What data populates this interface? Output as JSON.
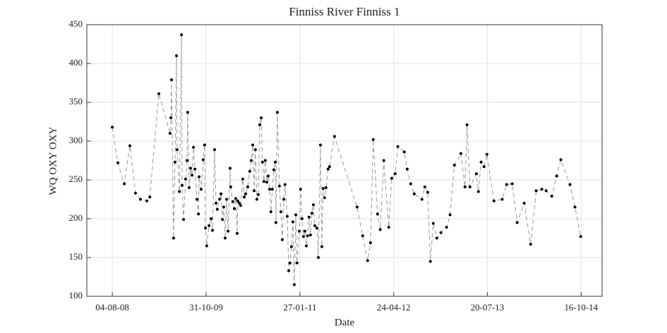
{
  "chart_data": {
    "type": "line",
    "title": "Finniss River Finniss 1",
    "x_label": "Date",
    "y_label": "WQ OXY OXY",
    "x": [
      "2008-08-04",
      "2008-08-31",
      "2008-10-01",
      "2008-10-28",
      "2008-11-24",
      "2008-12-18",
      "2009-01-18",
      "2009-02-01",
      "2009-03-17",
      "2009-05-10",
      "2009-05-14",
      "2009-05-17",
      "2009-05-27",
      "2009-06-03",
      "2009-06-10",
      "2009-06-13",
      "2009-06-24",
      "2009-07-04",
      "2009-07-07",
      "2009-07-14",
      "2009-07-24",
      "2009-07-31",
      "2009-08-03",
      "2009-08-10",
      "2009-08-17",
      "2009-08-24",
      "2009-08-31",
      "2009-09-07",
      "2009-09-17",
      "2009-09-24",
      "2009-09-27",
      "2009-10-07",
      "2009-10-17",
      "2009-10-24",
      "2009-10-28",
      "2009-11-03",
      "2009-11-14",
      "2009-11-24",
      "2009-12-01",
      "2009-12-11",
      "2009-12-18",
      "2009-12-24",
      "2010-01-04",
      "2010-01-11",
      "2010-01-18",
      "2010-01-24",
      "2010-01-31",
      "2010-02-07",
      "2010-02-14",
      "2010-02-24",
      "2010-02-27",
      "2010-03-09",
      "2010-03-16",
      "2010-03-23",
      "2010-03-30",
      "2010-04-02",
      "2010-04-09",
      "2010-04-16",
      "2010-04-26",
      "2010-05-03",
      "2010-05-10",
      "2010-05-20",
      "2010-05-30",
      "2010-06-06",
      "2010-06-13",
      "2010-06-20",
      "2010-06-26",
      "2010-07-03",
      "2010-07-10",
      "2010-07-17",
      "2010-07-24",
      "2010-07-30",
      "2010-08-06",
      "2010-08-13",
      "2010-08-20",
      "2010-08-27",
      "2010-09-03",
      "2010-09-09",
      "2010-09-16",
      "2010-09-23",
      "2010-09-30",
      "2010-10-03",
      "2010-10-10",
      "2010-10-20",
      "2010-10-27",
      "2010-11-03",
      "2010-11-10",
      "2010-11-16",
      "2010-11-27",
      "2010-12-04",
      "2010-12-10",
      "2010-12-17",
      "2010-12-24",
      "2010-12-31",
      "2011-01-07",
      "2011-01-13",
      "2011-01-24",
      "2011-01-30",
      "2011-02-06",
      "2011-02-13",
      "2011-02-20",
      "2011-02-27",
      "2011-03-05",
      "2011-03-12",
      "2011-03-19",
      "2011-03-26",
      "2011-04-02",
      "2011-04-09",
      "2011-04-19",
      "2011-04-26",
      "2011-05-06",
      "2011-05-13",
      "2011-05-19",
      "2011-05-26",
      "2011-06-02",
      "2011-06-12",
      "2011-06-19",
      "2011-07-13",
      "2011-10-30",
      "2011-11-26",
      "2011-12-20",
      "2012-01-03",
      "2012-01-16",
      "2012-02-06",
      "2012-02-19",
      "2012-03-07",
      "2012-03-31",
      "2012-04-14",
      "2012-05-01",
      "2012-05-14",
      "2012-06-14",
      "2012-06-28",
      "2012-07-15",
      "2012-08-01",
      "2012-09-07",
      "2012-09-21",
      "2012-10-05",
      "2012-10-18",
      "2012-11-01",
      "2012-11-18",
      "2012-12-08",
      "2013-01-04",
      "2013-01-21",
      "2013-02-11",
      "2013-03-14",
      "2013-04-03",
      "2013-04-13",
      "2013-04-27",
      "2013-05-28",
      "2013-06-07",
      "2013-06-20",
      "2013-07-04",
      "2013-07-18",
      "2013-08-21",
      "2013-09-30",
      "2013-10-21",
      "2013-11-17",
      "2013-12-11",
      "2014-01-14",
      "2014-02-14",
      "2014-03-13",
      "2014-04-09",
      "2014-04-30",
      "2014-05-27",
      "2014-06-20",
      "2014-07-10",
      "2014-08-23",
      "2014-09-16",
      "2014-10-14"
    ],
    "values": [
      318,
      272,
      245,
      294,
      233,
      225,
      223,
      228,
      361,
      310,
      330,
      379,
      175,
      273,
      410,
      289,
      235,
      437,
      243,
      199,
      251,
      275,
      337,
      240,
      265,
      256,
      292,
      264,
      225,
      206,
      254,
      238,
      276,
      295,
      188,
      165,
      191,
      200,
      185,
      289,
      220,
      212,
      225,
      232,
      199,
      215,
      175,
      225,
      184,
      265,
      241,
      222,
      213,
      226,
      181,
      223,
      220,
      217,
      251,
      228,
      232,
      241,
      261,
      275,
      295,
      236,
      289,
      225,
      231,
      321,
      330,
      273,
      248,
      275,
      247,
      255,
      238,
      209,
      238,
      263,
      273,
      195,
      337,
      242,
      209,
      173,
      225,
      244,
      203,
      133,
      143,
      164,
      196,
      115,
      205,
      143,
      184,
      238,
      200,
      177,
      184,
      165,
      178,
      202,
      179,
      207,
      218,
      191,
      188,
      150,
      295,
      164,
      239,
      227,
      240,
      264,
      267,
      306,
      215,
      178,
      146,
      169,
      302,
      206,
      186,
      275,
      189,
      252,
      258,
      293,
      286,
      264,
      245,
      232,
      225,
      241,
      234,
      145,
      194,
      175,
      182,
      189,
      205,
      269,
      284,
      241,
      321,
      241,
      258,
      235,
      273,
      267,
      283,
      223,
      225,
      244,
      245,
      195,
      220,
      167,
      236,
      238,
      236,
      229,
      255,
      276,
      244,
      215,
      177
    ],
    "line_color": "#999999",
    "marker_color": "#000000",
    "xlim": [
      "2008-04-03",
      "2015-01-25"
    ],
    "xticks": [
      {
        "value": "2008-08-04",
        "label": "04-08-08"
      },
      {
        "value": "2009-10-31",
        "label": "31-10-09"
      },
      {
        "value": "2011-01-27",
        "label": "27-01-11"
      },
      {
        "value": "2012-04-24",
        "label": "24-04-12"
      },
      {
        "value": "2013-07-20",
        "label": "20-07-13"
      },
      {
        "value": "2014-10-16",
        "label": "16-10-14"
      }
    ],
    "ylim": [
      100,
      450
    ],
    "yticks": [
      100,
      150,
      200,
      250,
      300,
      350,
      400,
      450
    ],
    "grid": true
  }
}
